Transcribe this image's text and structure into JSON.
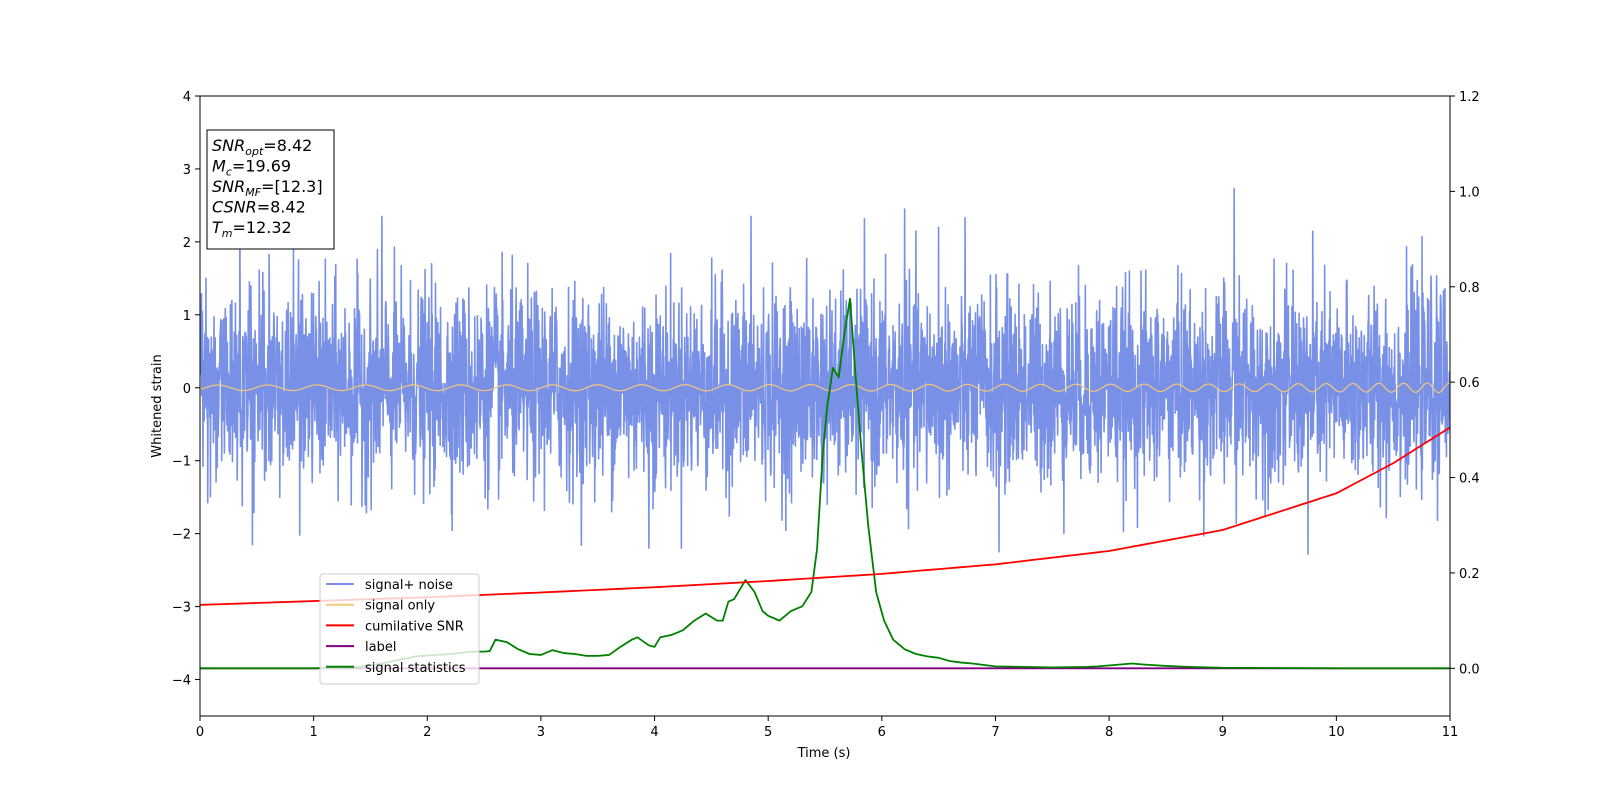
{
  "chart_data": {
    "type": "line",
    "title": "",
    "xlabel": "Time (s)",
    "ylabel": "Whitened strain",
    "y2label": "",
    "xlim": [
      0,
      11
    ],
    "ylim": [
      -4.5,
      4
    ],
    "y2lim": [
      -0.1,
      1.2
    ],
    "xticks": [
      0,
      1,
      2,
      3,
      4,
      5,
      6,
      7,
      8,
      9,
      10,
      11
    ],
    "yticks": [
      -4,
      -3,
      -2,
      -1,
      0,
      1,
      2,
      3,
      4
    ],
    "y2ticks": [
      0.0,
      0.2,
      0.4,
      0.6,
      0.8,
      1.0,
      1.2
    ],
    "grid": false,
    "legend_position": "lower-left",
    "stats_box": [
      {
        "label": "SNR",
        "sub": "opt",
        "value": "=8.42"
      },
      {
        "label": "M",
        "sub": "c",
        "value": "=19.69"
      },
      {
        "label": "SNR",
        "sub": "MF",
        "value": "=[12.3]"
      },
      {
        "label": "CSNR",
        "sub": "",
        "value": "=8.42"
      },
      {
        "label": "T",
        "sub": "m",
        "value": "=12.32"
      }
    ],
    "series": [
      {
        "name": "signal+ noise",
        "color": "#7890e6",
        "axis": "left",
        "kind": "noise",
        "sigma": 0.65,
        "range": [
          -2.3,
          2.7
        ],
        "tallest_peaks": [
          [
            0.35,
            2.2
          ],
          [
            1.6,
            2.35
          ],
          [
            4.85,
            2.35
          ],
          [
            6.2,
            2.45
          ],
          [
            9.1,
            2.73
          ],
          [
            6.5,
            2.2
          ],
          [
            9.75,
            -2.28
          ],
          [
            0.46,
            -2.15
          ],
          [
            3.95,
            -2.2
          ],
          [
            7.03,
            -2.25
          ]
        ]
      },
      {
        "name": "signal only",
        "color": "#f5c77a",
        "axis": "left",
        "kind": "chirp",
        "amplitude_end": 0.12,
        "t_merge": 12.32
      },
      {
        "name": "cumilative SNR",
        "color": "#ff0000",
        "axis": "right",
        "x": [
          0,
          1,
          2,
          3,
          4,
          5,
          6,
          7,
          8,
          9,
          10,
          10.5,
          11
        ],
        "values": [
          0.133,
          0.141,
          0.149,
          0.159,
          0.17,
          0.183,
          0.198,
          0.218,
          0.246,
          0.29,
          0.367,
          0.43,
          0.505
        ]
      },
      {
        "name": "label",
        "color": "#800080",
        "axis": "right",
        "x": [
          0,
          11
        ],
        "values": [
          0.0,
          0.0
        ]
      },
      {
        "name": "signal statistics",
        "color": "#008000",
        "axis": "right",
        "x": [
          0,
          0.5,
          1.0,
          1.4,
          1.6,
          1.8,
          1.9,
          2.2,
          2.4,
          2.5,
          2.55,
          2.6,
          2.7,
          2.8,
          2.9,
          3.0,
          3.1,
          3.2,
          3.3,
          3.4,
          3.5,
          3.6,
          3.7,
          3.8,
          3.85,
          3.95,
          4.0,
          4.05,
          4.15,
          4.25,
          4.35,
          4.45,
          4.55,
          4.6,
          4.65,
          4.7,
          4.8,
          4.88,
          4.95,
          5.0,
          5.1,
          5.2,
          5.3,
          5.38,
          5.43,
          5.48,
          5.52,
          5.57,
          5.62,
          5.67,
          5.72,
          5.77,
          5.82,
          5.88,
          5.95,
          6.02,
          6.1,
          6.2,
          6.3,
          6.4,
          6.5,
          6.6,
          6.7,
          6.8,
          6.9,
          7.0,
          7.5,
          7.8,
          7.9,
          8.1,
          8.2,
          8.3,
          8.5,
          8.7,
          9.0,
          10.0,
          11.0
        ],
        "values": [
          0.0,
          0.0,
          0.0,
          0.003,
          0.01,
          0.02,
          0.025,
          0.03,
          0.035,
          0.035,
          0.036,
          0.06,
          0.055,
          0.04,
          0.03,
          0.028,
          0.038,
          0.032,
          0.03,
          0.026,
          0.026,
          0.028,
          0.045,
          0.06,
          0.065,
          0.048,
          0.045,
          0.065,
          0.07,
          0.08,
          0.1,
          0.115,
          0.1,
          0.1,
          0.14,
          0.145,
          0.185,
          0.16,
          0.12,
          0.11,
          0.1,
          0.12,
          0.13,
          0.16,
          0.25,
          0.45,
          0.55,
          0.63,
          0.61,
          0.7,
          0.775,
          0.61,
          0.46,
          0.3,
          0.16,
          0.1,
          0.06,
          0.04,
          0.03,
          0.025,
          0.022,
          0.015,
          0.012,
          0.01,
          0.007,
          0.004,
          0.002,
          0.003,
          0.004,
          0.008,
          0.01,
          0.008,
          0.005,
          0.003,
          0.001,
          0.0,
          0.0
        ]
      }
    ]
  }
}
